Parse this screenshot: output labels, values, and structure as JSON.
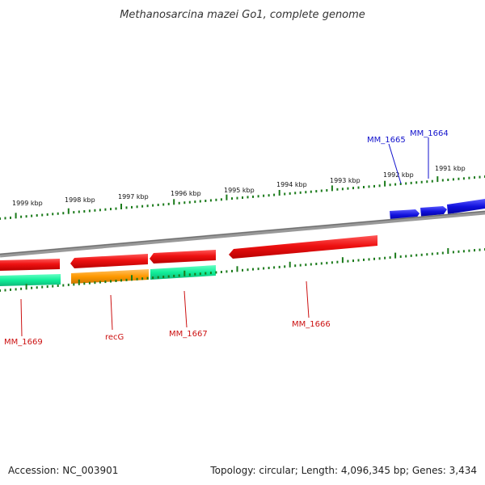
{
  "title": "Methanosarcina mazei Go1, complete genome",
  "footer": {
    "accession": "Accession: NC_003901",
    "summary": "Topology: circular; Length: 4,096,345 bp; Genes: 3,434"
  },
  "scale_labels": [
    "1999 kbp",
    "1998 kbp",
    "1997 kbp",
    "1996 kbp",
    "1995 kbp",
    "1994 kbp",
    "1993 kbp",
    "1992 kbp",
    "1991 kbp"
  ],
  "gene_labels": {
    "mm1665": "MM_1665",
    "mm1664": "MM_1664",
    "mm1669": "MM_1669",
    "recg": "recG",
    "mm1667": "MM_1667",
    "mm1666": "MM_1666"
  },
  "colors": {
    "backbone": "#7f7f7f",
    "gene_red": "#ee1111",
    "gene_orange": "#ff9900",
    "gene_green": "#11ee99",
    "gene_blue": "#1111dd",
    "tick": "#1a7a1a",
    "label_red": "#cc1111",
    "label_blue": "#1111cc"
  }
}
